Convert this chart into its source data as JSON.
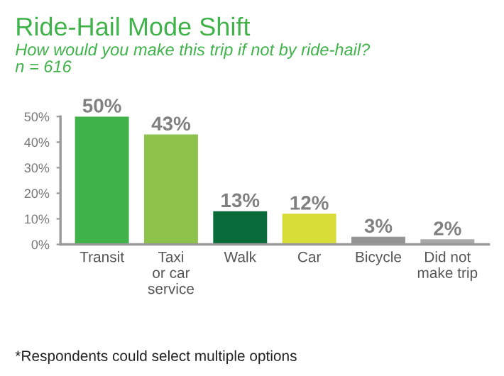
{
  "chart_data": {
    "type": "bar",
    "title": "Ride-Hail Mode Shift",
    "subtitle": "How would you make this trip if not by ride-hail?\nn = 616",
    "categories": [
      "Transit",
      "Taxi\nor car\nservice",
      "Walk",
      "Car",
      "Bicycle",
      "Did not\nmake trip"
    ],
    "values": [
      50,
      43,
      13,
      12,
      3,
      2
    ],
    "colors": [
      "#3fb34a",
      "#8dc34a",
      "#0a6b3a",
      "#d9dd38",
      "#939393",
      "#a9a9a9"
    ],
    "value_labels": [
      "50%",
      "43%",
      "13%",
      "12%",
      "3%",
      "2%"
    ],
    "ylim": [
      0,
      50
    ],
    "yticks": [
      {
        "value": 0,
        "label": "0%"
      },
      {
        "value": 10,
        "label": "10%"
      },
      {
        "value": 20,
        "label": "20%"
      },
      {
        "value": 30,
        "label": "30%"
      },
      {
        "value": 40,
        "label": "40%"
      },
      {
        "value": 50,
        "label": "50%"
      }
    ],
    "grid": false,
    "annotations": [
      "*Respondents could select multiple options"
    ]
  }
}
